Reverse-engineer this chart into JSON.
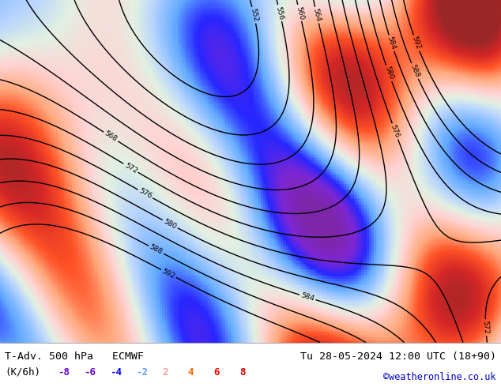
{
  "title_left": "T-Adv. 500 hPa   ECMWF",
  "title_right": "Tu 28-05-2024 12:00 UTC (18+90)",
  "subtitle_left": "(K/6h)",
  "legend_values": [
    "-8",
    "-6",
    "-4",
    "-2",
    "2",
    "4",
    "6",
    "8"
  ],
  "legend_colors": [
    "#6600cc",
    "#6600cc",
    "#0000ff",
    "#6699ff",
    "#ff9999",
    "#ff6600",
    "#ff0000",
    "#cc0000"
  ],
  "watermark": "©weatheronline.co.uk",
  "watermark_color": "#0000cc",
  "bg_color": "#aaddaa",
  "map_bg": "#c8e6c8",
  "bottom_bar_color": "#ffffff",
  "title_color": "#000000",
  "figsize": [
    6.34,
    4.9
  ],
  "dpi": 100
}
